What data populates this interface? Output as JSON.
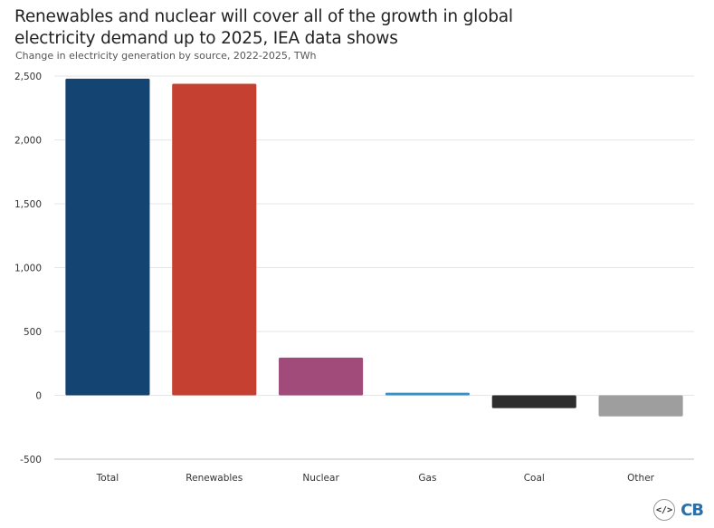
{
  "header": {
    "title": "Renewables and nuclear will cover all of the growth in global electricity demand up to 2025, IEA data shows",
    "subtitle": "Change in electricity generation by source, 2022-2025, TWh"
  },
  "footer": {
    "embed_icon": "</>",
    "logo_text": "CB"
  },
  "chart_data": {
    "type": "bar",
    "title": "Renewables and nuclear will cover all of the growth in global electricity demand up to 2025, IEA data shows",
    "subtitle": "Change in electricity generation by source, 2022-2025, TWh",
    "xlabel": "",
    "ylabel": "",
    "categories": [
      "Total",
      "Renewables",
      "Nuclear",
      "Gas",
      "Coal",
      "Other"
    ],
    "values": [
      2480,
      2440,
      295,
      20,
      -100,
      -165
    ],
    "colors": [
      "#144572",
      "#c54031",
      "#a14b7b",
      "#3a8fc4",
      "#2e2e2e",
      "#9e9e9e"
    ],
    "ylim": [
      -500,
      2500
    ],
    "yticks": [
      -500,
      0,
      500,
      1000,
      1500,
      2000,
      2500
    ],
    "ytick_labels": [
      "-500",
      "0",
      "500",
      "1,000",
      "1,500",
      "2,000",
      "2,500"
    ],
    "grid": true,
    "legend": "none"
  }
}
